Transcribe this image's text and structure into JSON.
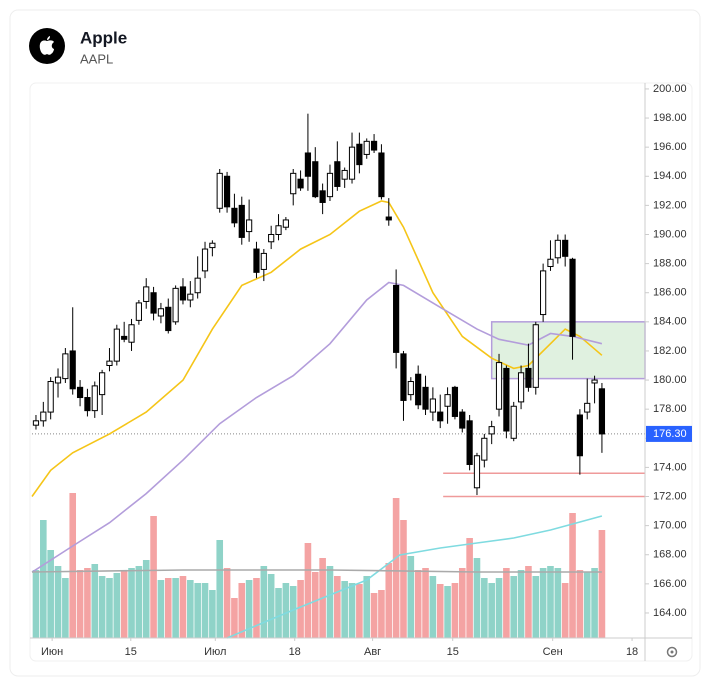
{
  "chart_data": {
    "type": "candlestick",
    "title": "Apple",
    "subtitle": "AAPL",
    "xlim": [
      -0.54,
      82.86
    ],
    "ylim": [
      162.28,
      200.27
    ],
    "xticks": [
      {
        "value": 2.2,
        "label": "Июн"
      },
      {
        "value": 12.9,
        "label": "15"
      },
      {
        "value": 24.4,
        "label": "Июл"
      },
      {
        "value": 35.2,
        "label": "18"
      },
      {
        "value": 45.8,
        "label": "Авг"
      },
      {
        "value": 56.7,
        "label": "15"
      },
      {
        "value": 70.3,
        "label": "Сен"
      },
      {
        "value": 81.1,
        "label": "18"
      }
    ],
    "yticks": [
      {
        "value": 164,
        "label": "164.00"
      },
      {
        "value": 166,
        "label": "166.00"
      },
      {
        "value": 168,
        "label": "168.00"
      },
      {
        "value": 170,
        "label": "170.00"
      },
      {
        "value": 172,
        "label": "172.00"
      },
      {
        "value": 174,
        "label": "174.00"
      },
      {
        "value": 176,
        "label": "176.00"
      },
      {
        "value": 178,
        "label": "178.00"
      },
      {
        "value": 180,
        "label": "180.00"
      },
      {
        "value": 182,
        "label": "182.00"
      },
      {
        "value": 184,
        "label": "184.00"
      },
      {
        "value": 186,
        "label": "186.00"
      },
      {
        "value": 188,
        "label": "188.00"
      },
      {
        "value": 190,
        "label": "190.00"
      },
      {
        "value": 192,
        "label": "192.00"
      },
      {
        "value": 194,
        "label": "194.00"
      },
      {
        "value": 196,
        "label": "196.00"
      },
      {
        "value": 198,
        "label": "198.00"
      },
      {
        "value": 200,
        "label": "200.00"
      }
    ],
    "last_price": {
      "value": 176.3,
      "label": "176.30",
      "color": "#2962ff"
    },
    "up_color": "#ffffff",
    "down_color": "#000000",
    "volume_up_color": "#8fd3c8",
    "volume_down_color": "#f4a3a3",
    "open": [
      176.9,
      177.2,
      177.8,
      179.8,
      180.1,
      182.0,
      179.5,
      178.8,
      177.9,
      179.0,
      181.0,
      181.3,
      183.0,
      182.6,
      184.1,
      185.4,
      186.0,
      184.4,
      185.0,
      184.0,
      186.4,
      185.5,
      186.0,
      187.5,
      189.1,
      191.8,
      194.0,
      191.8,
      192.0,
      190.2,
      189.0,
      187.6,
      189.5,
      190.0,
      190.5,
      192.8,
      193.8,
      195.6,
      195.0,
      193.0,
      192.6,
      195.0,
      193.8,
      193.8,
      196.2,
      195.5,
      196.4,
      195.6,
      191.2,
      186.5,
      181.8,
      179.0,
      180.4,
      179.5,
      177.8,
      177.8,
      178.2,
      179.5,
      177.8,
      177.2,
      172.6,
      174.5,
      176.3,
      178.0,
      180.8,
      176.0,
      178.5,
      180.8,
      179.5,
      184.5,
      187.8,
      188.4,
      189.6,
      188.3,
      177.6,
      177.8,
      179.8,
      179.4
    ],
    "high": [
      177.6,
      178.5,
      180.2,
      180.8,
      182.2,
      185.0,
      180.0,
      179.4,
      179.9,
      180.7,
      182.2,
      183.8,
      184.0,
      184.2,
      185.5,
      187.0,
      186.4,
      185.3,
      185.6,
      186.5,
      187.0,
      186.8,
      188.5,
      189.5,
      189.6,
      194.5,
      194.3,
      192.8,
      192.6,
      192.4,
      189.5,
      189.0,
      190.6,
      191.4,
      191.2,
      194.5,
      194.4,
      198.3,
      196.0,
      193.5,
      194.8,
      196.4,
      194.6,
      197.0,
      197.0,
      196.6,
      196.9,
      196.2,
      192.5,
      187.6,
      182.0,
      180.2,
      181.0,
      180.3,
      179.5,
      179.0,
      179.5,
      179.6,
      178.0,
      177.6,
      175.0,
      176.3,
      177.2,
      181.8,
      181.0,
      178.5,
      181.0,
      182.5,
      184.0,
      188.0,
      189.6,
      190.0,
      190.0,
      188.4,
      178.0,
      180.1,
      180.3,
      179.8
    ],
    "low": [
      176.6,
      176.8,
      177.3,
      178.8,
      179.8,
      179.0,
      178.2,
      177.5,
      177.4,
      177.6,
      180.6,
      181.0,
      182.6,
      182.0,
      183.8,
      184.9,
      184.1,
      183.9,
      183.2,
      183.8,
      185.2,
      185.0,
      185.6,
      187.0,
      188.5,
      191.5,
      191.5,
      190.5,
      189.3,
      189.5,
      187.0,
      186.8,
      189.0,
      189.6,
      190.3,
      192.0,
      193.0,
      193.0,
      192.5,
      191.4,
      192.3,
      193.0,
      193.2,
      193.5,
      194.2,
      195.2,
      195.6,
      192.4,
      190.6,
      180.8,
      177.2,
      178.6,
      178.0,
      177.6,
      177.2,
      176.7,
      177.0,
      177.3,
      176.4,
      173.8,
      172.1,
      174.0,
      175.6,
      177.5,
      176.0,
      175.8,
      178.0,
      179.2,
      179.0,
      184.0,
      187.5,
      188.0,
      187.8,
      181.4,
      173.5,
      177.3,
      178.4,
      175.0
    ],
    "close": [
      177.2,
      177.8,
      179.9,
      180.2,
      181.8,
      179.4,
      178.8,
      177.9,
      179.6,
      180.5,
      181.3,
      183.5,
      182.8,
      183.8,
      185.3,
      186.4,
      184.6,
      184.9,
      183.4,
      186.3,
      185.5,
      185.9,
      187.0,
      189.0,
      189.4,
      194.2,
      191.9,
      190.8,
      189.8,
      191.0,
      187.4,
      188.7,
      190.0,
      190.6,
      191.0,
      194.2,
      193.2,
      194.0,
      192.6,
      192.2,
      194.2,
      193.3,
      194.4,
      196.0,
      194.8,
      196.4,
      195.8,
      192.6,
      191.0,
      181.9,
      178.6,
      179.9,
      178.3,
      178.0,
      178.7,
      177.2,
      179.0,
      177.5,
      176.7,
      174.2,
      174.8,
      176.0,
      176.8,
      181.2,
      176.5,
      178.2,
      180.5,
      179.5,
      183.8,
      187.5,
      188.3,
      189.6,
      188.5,
      183.0,
      174.8,
      178.4,
      180.0,
      176.3
    ],
    "volume": [
      68,
      118,
      88,
      72,
      60,
      145,
      68,
      70,
      74,
      62,
      60,
      65,
      68,
      70,
      72,
      78,
      122,
      58,
      60,
      60,
      62,
      58,
      55,
      55,
      48,
      98,
      70,
      40,
      55,
      58,
      60,
      72,
      64,
      50,
      55,
      52,
      58,
      95,
      66,
      80,
      72,
      62,
      57,
      55,
      54,
      62,
      45,
      48,
      75,
      140,
      118,
      82,
      68,
      70,
      62,
      54,
      52,
      55,
      70,
      100,
      80,
      60,
      55,
      60,
      70,
      62,
      68,
      72,
      62,
      70,
      72,
      70,
      55,
      125,
      68,
      66,
      70,
      108
    ],
    "volume_lim": [
      0,
      160
    ],
    "lines": [
      {
        "color": "#f5c518",
        "axis": "price",
        "x": [
          -0.54,
          2,
          5,
          10,
          15,
          20,
          24,
          28,
          32,
          36,
          40,
          44,
          47,
          48,
          50,
          54,
          58,
          62,
          65,
          67,
          70,
          72,
          74,
          77
        ],
        "values": [
          172.0,
          173.8,
          175.0,
          176.3,
          177.8,
          180.0,
          183.5,
          186.5,
          187.4,
          189.0,
          190.0,
          191.6,
          192.3,
          192.2,
          190.5,
          186.0,
          183.0,
          181.5,
          180.8,
          181.0,
          182.5,
          183.5,
          183.0,
          181.7
        ]
      },
      {
        "color": "#b39ddb",
        "axis": "price",
        "x": [
          -0.54,
          5,
          10,
          15,
          20,
          25,
          30,
          35,
          40,
          45,
          48,
          50,
          55,
          60,
          63,
          67,
          70,
          73,
          77
        ],
        "values": [
          166.8,
          168.6,
          170.2,
          172.2,
          174.5,
          177.0,
          178.8,
          180.3,
          182.5,
          185.5,
          186.7,
          186.5,
          185.0,
          183.5,
          182.8,
          182.4,
          183.2,
          183.0,
          182.5
        ]
      },
      {
        "color": "#7fdbe0",
        "axis": "volume",
        "x": [
          26,
          35,
          45,
          49.5,
          55,
          60,
          65,
          70,
          74,
          77
        ],
        "values": [
          0,
          28,
          58,
          83,
          90,
          95,
          100,
          108,
          116,
          122
        ]
      },
      {
        "color": "#aaaaaa",
        "axis": "volume",
        "x": [
          -0.54,
          20,
          40,
          60,
          77
        ],
        "values": [
          66,
          68,
          68,
          66,
          66
        ]
      }
    ],
    "zone": {
      "x0": 62,
      "y": [
        180.1,
        184.0
      ],
      "fill": "rgba(165,214,167,0.35)",
      "stroke": "#b39ddb"
    },
    "levels": [
      {
        "value": 173.6,
        "x0": 55.4,
        "color": "#ef9a9a"
      },
      {
        "value": 172.0,
        "x0": 55.4,
        "color": "#ef9a9a"
      }
    ]
  }
}
